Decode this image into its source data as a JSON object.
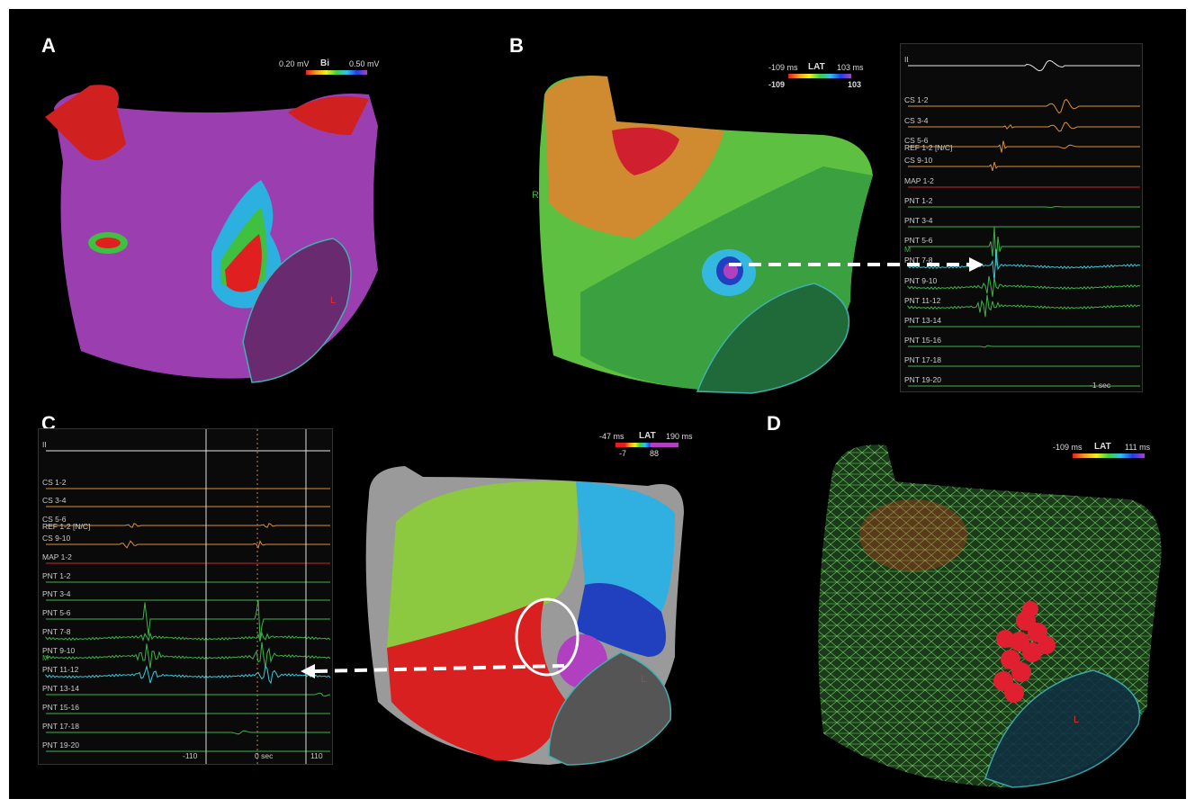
{
  "panels": {
    "A": {
      "label": "A",
      "legend": {
        "min": "0.20 mV",
        "title": "Bi",
        "max": "0.50 mV"
      },
      "marker": "L"
    },
    "B": {
      "label": "B",
      "legend": {
        "min": "-109 ms",
        "title": "LAT",
        "max": "103 ms",
        "low": "-109",
        "high": "103"
      },
      "marker_r": "R",
      "marker_m": "M",
      "time_label": "-1 sec",
      "traces": [
        {
          "label": "II",
          "color": "#e8e8e8"
        },
        {
          "label": "CS 1-2",
          "color": "#d9903a"
        },
        {
          "label": "CS 3-4",
          "color": "#d9903a"
        },
        {
          "label": "CS 5-6",
          "color": "#d9903a"
        },
        {
          "label": "REF 1-2 [N/C]",
          "color": ""
        },
        {
          "label": "CS 9-10",
          "color": "#d9903a"
        },
        {
          "label": "MAP 1-2",
          "color": "#c8282a"
        },
        {
          "label": "PNT 1-2",
          "color": "#3cb44a"
        },
        {
          "label": "PNT 3-4",
          "color": "#3cb44a"
        },
        {
          "label": "PNT 5-6",
          "color": "#3cb44a"
        },
        {
          "label": "PNT 7-8",
          "color": "#3cc8d8"
        },
        {
          "label": "PNT 9-10",
          "color": "#3cb44a"
        },
        {
          "label": "PNT 11-12",
          "color": "#3cb44a"
        },
        {
          "label": "PNT 13-14",
          "color": "#3cb44a"
        },
        {
          "label": "PNT 15-16",
          "color": "#3cb44a"
        },
        {
          "label": "PNT 17-18",
          "color": "#3cb44a"
        },
        {
          "label": "PNT 19-20",
          "color": "#3cb44a"
        }
      ]
    },
    "C": {
      "label": "C",
      "legend": {
        "min": "-47 ms",
        "title": "LAT",
        "max": "190 ms",
        "low": "-7",
        "high": "88"
      },
      "marker": "L",
      "marker_m": "M",
      "axis": {
        "left": "-110",
        "center": "0 sec",
        "right": "110"
      },
      "traces": [
        {
          "label": "II",
          "color": "#e8e8e8"
        },
        {
          "label": "CS 1-2",
          "color": "#d9903a"
        },
        {
          "label": "CS 3-4",
          "color": "#d9903a"
        },
        {
          "label": "CS 5-6",
          "color": "#d9903a"
        },
        {
          "label": "REF 1-2 [N/C]",
          "color": ""
        },
        {
          "label": "CS 9-10",
          "color": "#d9903a"
        },
        {
          "label": "MAP 1-2",
          "color": "#c8282a"
        },
        {
          "label": "PNT 1-2",
          "color": "#3cb44a"
        },
        {
          "label": "PNT 3-4",
          "color": "#3cb44a"
        },
        {
          "label": "PNT 5-6",
          "color": "#3cb44a"
        },
        {
          "label": "PNT 7-8",
          "color": "#3cb44a"
        },
        {
          "label": "PNT 9-10",
          "color": "#3cb44a"
        },
        {
          "label": "PNT 11-12",
          "color": "#3cc8d8"
        },
        {
          "label": "PNT 13-14",
          "color": "#3cb44a"
        },
        {
          "label": "PNT 15-16",
          "color": "#3cb44a"
        },
        {
          "label": "PNT 17-18",
          "color": "#3cb44a"
        },
        {
          "label": "PNT 19-20",
          "color": "#3cb44a"
        }
      ]
    },
    "D": {
      "label": "D",
      "legend": {
        "min": "-109 ms",
        "title": "LAT",
        "max": "111 ms"
      },
      "marker": "L"
    }
  },
  "colors": {
    "background": "#000000",
    "scar": "#9b3fb0",
    "lat_scale": [
      "#e02020",
      "#f0a020",
      "#f0f020",
      "#40d040",
      "#30c0f0",
      "#2040e0",
      "#b040c0"
    ]
  }
}
